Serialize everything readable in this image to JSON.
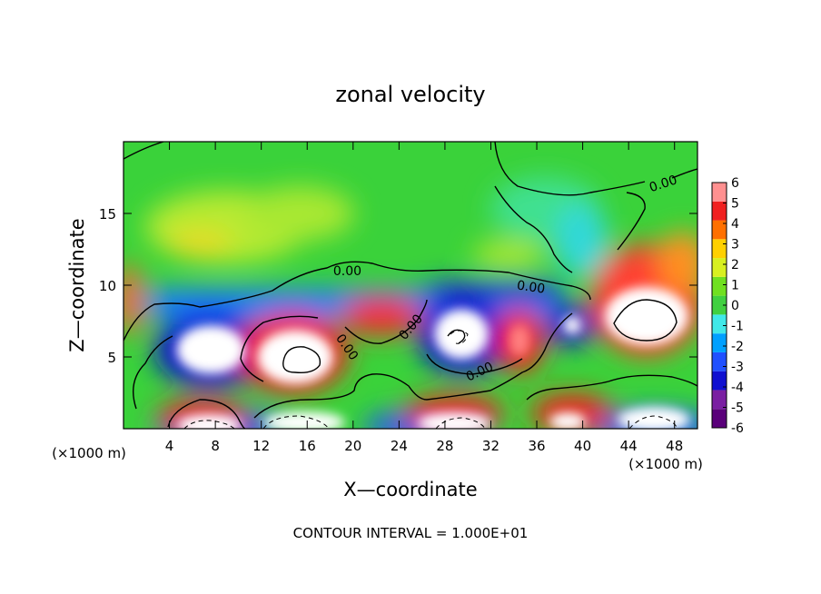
{
  "chart_data": {
    "type": "heatmap",
    "title": "zonal velocity",
    "xlabel": "X—coordinate",
    "ylabel": "Z—coordinate",
    "x_unit_label": "(×1000 m)",
    "x_unit_label_left": "(×1000 m)",
    "xlim": [
      0,
      50
    ],
    "ylim": [
      0,
      20
    ],
    "x_ticks": [
      4,
      8,
      12,
      16,
      20,
      24,
      28,
      32,
      36,
      40,
      44,
      48
    ],
    "y_ticks": [
      5,
      10,
      15
    ],
    "colorbar": {
      "min": -6,
      "max": 6,
      "ticks": [
        6,
        5,
        4,
        3,
        2,
        1,
        0,
        -1,
        -2,
        -3,
        -4,
        -5,
        -6
      ],
      "colors": [
        "#5a007a",
        "#7a1fa2",
        "#1010d0",
        "#2050ff",
        "#00a0ff",
        "#40e8e8",
        "#40d040",
        "#70e020",
        "#d8f020",
        "#ffd000",
        "#ff7000",
        "#f02020",
        "#ff9090"
      ]
    },
    "contour_labels": [
      {
        "text": "0.00",
        "x": 19.5,
        "y": 11.0,
        "angle": 0
      },
      {
        "text": "0.00",
        "x": 35.5,
        "y": 9.9,
        "angle": 8
      },
      {
        "text": "0.00",
        "x": 47.0,
        "y": 17.1,
        "angle": -18
      },
      {
        "text": "0.00",
        "x": 25.0,
        "y": 7.1,
        "angle": -50
      },
      {
        "text": "0.00",
        "x": 19.5,
        "y": 5.7,
        "angle": 55
      },
      {
        "text": "0.00",
        "x": 31.0,
        "y": 4.0,
        "angle": -25
      }
    ],
    "annotation": "CONTOUR INTERVAL = 1.000E+01"
  }
}
